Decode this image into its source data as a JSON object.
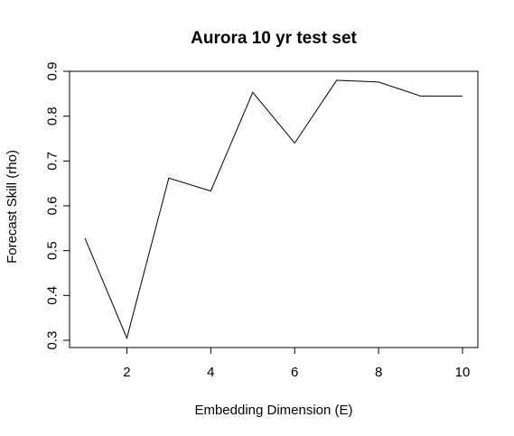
{
  "chart_data": {
    "type": "line",
    "title": "Aurora 10 yr test set",
    "xlabel": "Embedding Dimension (E)",
    "ylabel": "Forecast Skill (rho)",
    "xlim": [
      1,
      10
    ],
    "ylim": [
      0.3,
      0.9
    ],
    "xticks": [
      2,
      4,
      6,
      8,
      10
    ],
    "yticks": [
      0.3,
      0.4,
      0.5,
      0.6,
      0.7,
      0.8,
      0.9
    ],
    "xtick_labels": [
      "2",
      "4",
      "6",
      "8",
      "10"
    ],
    "ytick_labels": [
      "0.3",
      "0.4",
      "0.5",
      "0.6",
      "0.7",
      "0.8",
      "0.9"
    ],
    "grid": false,
    "series": [
      {
        "x": [
          1,
          2,
          3,
          4,
          5,
          6,
          7,
          8,
          9,
          10
        ],
        "values": [
          0.528,
          0.305,
          0.662,
          0.633,
          0.853,
          0.74,
          0.88,
          0.876,
          0.845,
          0.845
        ],
        "color": "#000000"
      }
    ]
  }
}
